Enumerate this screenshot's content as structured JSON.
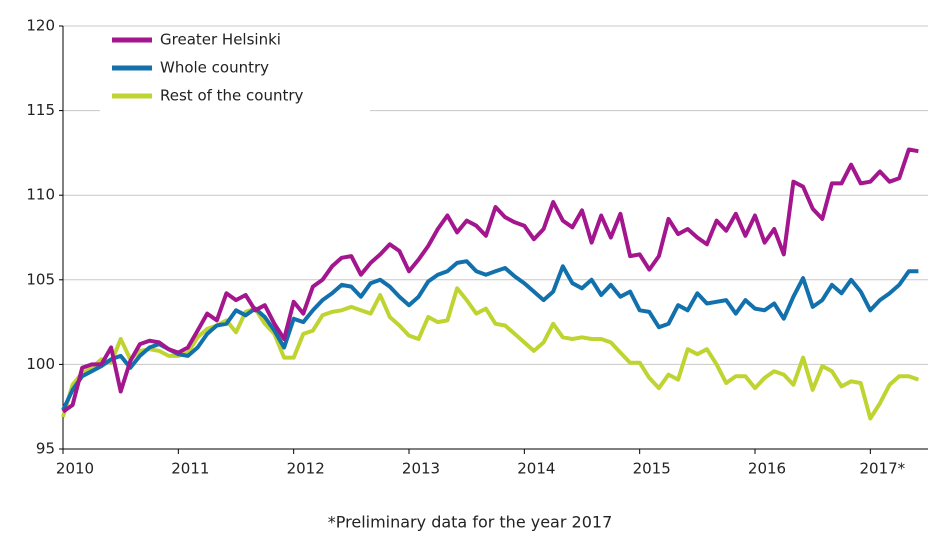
{
  "chart_data": {
    "type": "line",
    "categories": [
      "2010",
      null,
      null,
      null,
      null,
      null,
      null,
      null,
      null,
      null,
      null,
      null,
      "2011",
      null,
      null,
      null,
      null,
      null,
      null,
      null,
      null,
      null,
      null,
      null,
      "2012",
      null,
      null,
      null,
      null,
      null,
      null,
      null,
      null,
      null,
      null,
      null,
      "2013",
      null,
      null,
      null,
      null,
      null,
      null,
      null,
      null,
      null,
      null,
      null,
      "2014",
      null,
      null,
      null,
      null,
      null,
      null,
      null,
      null,
      null,
      null,
      null,
      "2015",
      null,
      null,
      null,
      null,
      null,
      null,
      null,
      null,
      null,
      null,
      null,
      "2016",
      null,
      null,
      null,
      null,
      null,
      null,
      null,
      null,
      null,
      null,
      null,
      "2017*",
      null,
      null,
      null,
      null,
      null
    ],
    "series": [
      {
        "name": "Greater Helsinki",
        "color": "#a3168e",
        "values": [
          97.2,
          97.6,
          99.8,
          100.0,
          100.0,
          101.0,
          98.4,
          100.2,
          101.2,
          101.4,
          101.3,
          100.9,
          100.7,
          101.0,
          102.0,
          103.0,
          102.6,
          104.2,
          103.8,
          104.1,
          103.2,
          103.5,
          102.4,
          101.5,
          103.7,
          103.0,
          104.6,
          105.0,
          105.8,
          106.3,
          106.4,
          105.3,
          106.0,
          106.5,
          107.1,
          106.7,
          105.5,
          106.2,
          107.0,
          108.0,
          108.8,
          107.8,
          108.5,
          108.2,
          107.6,
          109.3,
          108.7,
          108.4,
          108.2,
          107.4,
          108.0,
          109.6,
          108.5,
          108.1,
          109.1,
          107.2,
          108.8,
          107.5,
          108.9,
          106.4,
          106.5,
          105.6,
          106.4,
          108.6,
          107.7,
          108.0,
          107.5,
          107.1,
          108.5,
          107.9,
          108.9,
          107.6,
          108.8,
          107.2,
          108.0,
          106.5,
          110.8,
          110.5,
          109.2,
          108.6,
          110.7,
          110.7,
          111.8,
          110.7,
          110.8,
          111.4,
          110.8,
          111.0,
          112.7,
          112.6
        ]
      },
      {
        "name": "Whole country",
        "color": "#1271ac",
        "values": [
          97.3,
          98.5,
          99.3,
          99.6,
          99.9,
          100.3,
          100.5,
          99.8,
          100.5,
          101.0,
          101.2,
          100.9,
          100.6,
          100.5,
          101.0,
          101.8,
          102.3,
          102.4,
          103.2,
          102.9,
          103.3,
          102.8,
          102.0,
          101.0,
          102.7,
          102.5,
          103.2,
          103.8,
          104.2,
          104.7,
          104.6,
          104.0,
          104.8,
          105.0,
          104.6,
          104.0,
          103.5,
          104.0,
          104.9,
          105.3,
          105.5,
          106.0,
          106.1,
          105.5,
          105.3,
          105.5,
          105.7,
          105.2,
          104.8,
          104.3,
          103.8,
          104.3,
          105.8,
          104.8,
          104.5,
          105.0,
          104.1,
          104.7,
          104.0,
          104.3,
          103.2,
          103.1,
          102.2,
          102.4,
          103.5,
          103.2,
          104.2,
          103.6,
          103.7,
          103.8,
          103.0,
          103.8,
          103.3,
          103.2,
          103.6,
          102.7,
          104.0,
          105.1,
          103.4,
          103.8,
          104.7,
          104.2,
          105.0,
          104.3,
          103.2,
          103.8,
          104.2,
          104.7,
          105.5,
          105.5
        ]
      },
      {
        "name": "Rest of the country",
        "color": "#bfd431",
        "values": [
          96.9,
          98.8,
          99.5,
          99.8,
          100.3,
          100.1,
          101.5,
          100.3,
          100.8,
          100.9,
          100.8,
          100.5,
          100.5,
          100.7,
          101.6,
          102.1,
          102.3,
          102.6,
          101.9,
          103.1,
          103.3,
          102.4,
          101.8,
          100.4,
          100.4,
          101.8,
          102.0,
          102.9,
          103.1,
          103.2,
          103.4,
          103.2,
          103.0,
          104.1,
          102.8,
          102.3,
          101.7,
          101.5,
          102.8,
          102.5,
          102.6,
          104.5,
          103.8,
          103.0,
          103.3,
          102.4,
          102.3,
          101.8,
          101.3,
          100.8,
          101.3,
          102.4,
          101.6,
          101.5,
          101.6,
          101.5,
          101.5,
          101.3,
          100.7,
          100.1,
          100.1,
          99.2,
          98.6,
          99.4,
          99.1,
          100.9,
          100.6,
          100.9,
          100.0,
          98.9,
          99.3,
          99.3,
          98.6,
          99.2,
          99.6,
          99.4,
          98.8,
          100.4,
          98.5,
          99.9,
          99.6,
          98.7,
          99.0,
          98.9,
          96.8,
          97.7,
          98.8,
          99.3,
          99.3,
          99.1
        ]
      }
    ],
    "ylim": [
      95,
      120
    ],
    "yticks": [
      95,
      100,
      105,
      110,
      115,
      120
    ],
    "grid": true,
    "legend": "upper left",
    "footnote": "*Preliminary data for the year 2017"
  }
}
